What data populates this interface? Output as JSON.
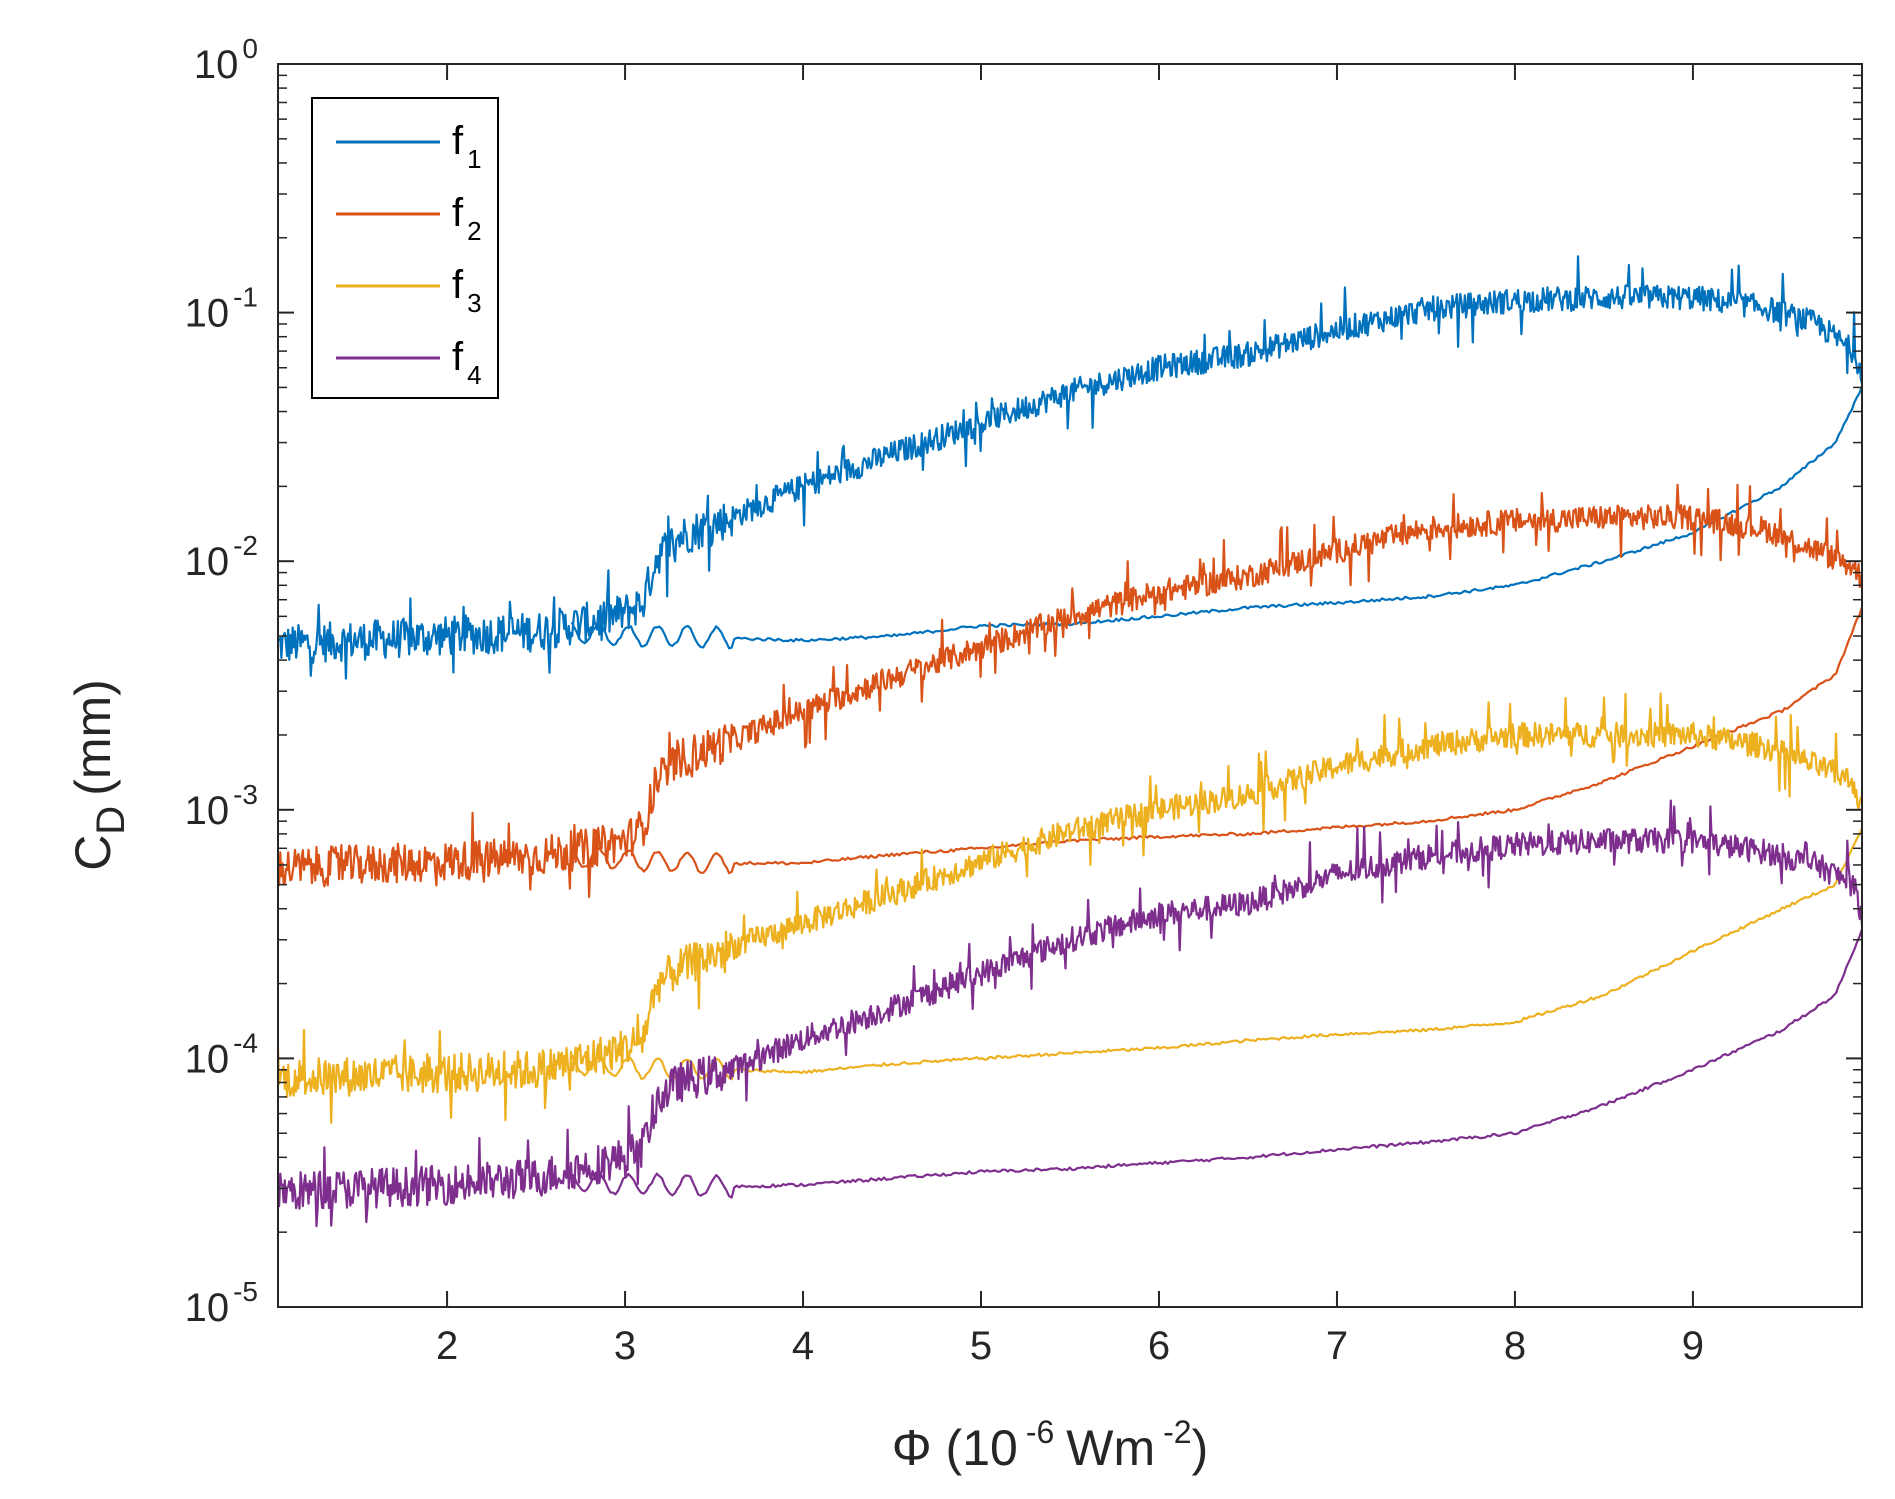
{
  "chart_data": {
    "type": "line",
    "title": "",
    "xlabel": {
      "prefix": "Φ (10",
      "exp": "-6",
      "mid": "Wm",
      "exp2": "-2",
      "suffix": ")"
    },
    "ylabel": {
      "main": "C",
      "sub": "D",
      "suffix": "(mm)"
    },
    "yscale": "log",
    "xlim": [
      1.05,
      9.95
    ],
    "ylim": [
      1e-05,
      1
    ],
    "grid": false,
    "legend_position": "top-left",
    "x_ticks": [
      {
        "value": 2,
        "label": "2"
      },
      {
        "value": 3,
        "label": "3"
      },
      {
        "value": 4,
        "label": "4"
      },
      {
        "value": 5,
        "label": "5"
      },
      {
        "value": 6,
        "label": "6"
      },
      {
        "value": 7,
        "label": "7"
      },
      {
        "value": 8,
        "label": "8"
      },
      {
        "value": 9,
        "label": "9"
      }
    ],
    "y_ticks": [
      {
        "value": 1e-05,
        "base": "10",
        "exp": "-5"
      },
      {
        "value": 0.0001,
        "base": "10",
        "exp": "-4"
      },
      {
        "value": 0.001,
        "base": "10",
        "exp": "-3"
      },
      {
        "value": 0.01,
        "base": "10",
        "exp": "-2"
      },
      {
        "value": 0.1,
        "base": "10",
        "exp": "-1"
      },
      {
        "value": 1,
        "base": "10",
        "exp": "0"
      }
    ],
    "series": [
      {
        "name": "f1",
        "label_main": "f",
        "label_sub": "1",
        "color": "#0072BD",
        "upper": {
          "x": [
            1.05,
            1.5,
            2.0,
            2.5,
            2.8,
            3.0,
            3.1,
            3.18,
            3.3,
            3.6,
            4.0,
            4.5,
            5.0,
            5.5,
            6.0,
            6.5,
            7.0,
            7.5,
            8.0,
            8.5,
            9.0,
            9.4,
            9.7,
            9.9,
            9.95
          ],
          "y": [
            0.0046,
            0.0048,
            0.005,
            0.0052,
            0.0057,
            0.0062,
            0.0068,
            0.0105,
            0.0125,
            0.015,
            0.02,
            0.027,
            0.036,
            0.048,
            0.06,
            0.068,
            0.085,
            0.103,
            0.112,
            0.115,
            0.115,
            0.105,
            0.09,
            0.07,
            0.058
          ]
        },
        "lower": {
          "x": [
            2.7,
            3.0,
            3.2,
            3.6,
            4.0,
            4.5,
            5.0,
            5.5,
            6.0,
            6.5,
            7.0,
            7.5,
            8.0,
            8.5,
            9.0,
            9.5,
            9.8,
            9.95
          ],
          "y": [
            0.0052,
            0.005,
            0.005,
            0.0049,
            0.0048,
            0.005,
            0.0055,
            0.0056,
            0.006,
            0.0065,
            0.0068,
            0.0072,
            0.008,
            0.01,
            0.013,
            0.02,
            0.03,
            0.05
          ]
        }
      },
      {
        "name": "f2",
        "label_main": "f",
        "label_sub": "2",
        "color": "#D95319",
        "upper": {
          "x": [
            1.05,
            1.5,
            2.0,
            2.5,
            2.8,
            3.0,
            3.1,
            3.18,
            3.3,
            3.6,
            4.0,
            4.5,
            5.0,
            5.5,
            6.0,
            6.5,
            7.0,
            7.5,
            8.0,
            8.5,
            9.0,
            9.4,
            9.7,
            9.9,
            9.95
          ],
          "y": [
            0.00058,
            0.0006,
            0.00062,
            0.00065,
            0.0007,
            0.00075,
            0.00085,
            0.0013,
            0.0016,
            0.0019,
            0.0025,
            0.0034,
            0.0045,
            0.006,
            0.0075,
            0.0087,
            0.011,
            0.0135,
            0.0145,
            0.015,
            0.015,
            0.0135,
            0.011,
            0.0095,
            0.0085
          ]
        },
        "lower": {
          "x": [
            2.7,
            3.0,
            3.2,
            3.6,
            4.0,
            4.5,
            5.0,
            5.5,
            6.0,
            6.5,
            7.0,
            7.5,
            8.0,
            8.5,
            9.0,
            9.5,
            9.8,
            9.95
          ],
          "y": [
            0.00065,
            0.00063,
            0.00062,
            0.00061,
            0.00061,
            0.00066,
            0.0007,
            0.00075,
            0.00078,
            0.0008,
            0.00085,
            0.0009,
            0.001,
            0.0013,
            0.0018,
            0.0025,
            0.0035,
            0.0065
          ]
        }
      },
      {
        "name": "f3",
        "label_main": "f",
        "label_sub": "3",
        "color": "#EDB120",
        "upper": {
          "x": [
            1.05,
            1.5,
            2.0,
            2.5,
            2.8,
            3.0,
            3.1,
            3.18,
            3.3,
            3.6,
            4.0,
            4.5,
            5.0,
            5.5,
            6.0,
            6.5,
            7.0,
            7.5,
            8.0,
            8.5,
            9.0,
            9.4,
            9.7,
            9.9,
            9.95
          ],
          "y": [
            8.3e-05,
            8.5e-05,
            8.7e-05,
            9e-05,
            0.0001,
            0.00011,
            0.00012,
            0.0002,
            0.00023,
            0.00028,
            0.00035,
            0.00046,
            0.00062,
            0.00082,
            0.001,
            0.00115,
            0.0015,
            0.0018,
            0.002,
            0.002,
            0.002,
            0.0018,
            0.0015,
            0.0013,
            0.001
          ]
        },
        "lower": {
          "x": [
            2.7,
            3.0,
            3.2,
            3.6,
            4.0,
            4.5,
            5.0,
            5.5,
            6.0,
            6.5,
            7.0,
            7.5,
            8.0,
            8.5,
            9.0,
            9.5,
            9.8,
            9.95
          ],
          "y": [
            9.5e-05,
            9.2e-05,
            9.1e-05,
            9e-05,
            8.8e-05,
            9.5e-05,
            0.0001,
            0.000105,
            0.00011,
            0.000118,
            0.000125,
            0.00013,
            0.00014,
            0.00018,
            0.00027,
            0.0004,
            0.0005,
            0.00085
          ]
        }
      },
      {
        "name": "f4",
        "label_main": "f",
        "label_sub": "4",
        "color": "#7E2F8E",
        "upper": {
          "x": [
            1.05,
            1.5,
            2.0,
            2.5,
            2.8,
            3.0,
            3.1,
            3.18,
            3.3,
            3.6,
            4.0,
            4.5,
            5.0,
            5.5,
            6.0,
            6.5,
            7.0,
            7.5,
            8.0,
            8.5,
            9.0,
            9.4,
            9.7,
            9.9,
            9.95
          ],
          "y": [
            2.9e-05,
            3e-05,
            3.1e-05,
            3.3e-05,
            3.7e-05,
            4e-05,
            4.4e-05,
            6.8e-05,
            8e-05,
            9e-05,
            0.00012,
            0.00016,
            0.00022,
            0.0003,
            0.00038,
            0.00042,
            0.00055,
            0.00065,
            0.00072,
            0.00075,
            0.00075,
            0.00068,
            0.0006,
            0.0005,
            0.00038
          ]
        },
        "lower": {
          "x": [
            2.7,
            3.0,
            3.2,
            3.6,
            4.0,
            4.5,
            5.0,
            5.5,
            6.0,
            6.5,
            7.0,
            7.5,
            8.0,
            8.5,
            9.0,
            9.5,
            9.8,
            9.95
          ],
          "y": [
            3.2e-05,
            3.1e-05,
            3.1e-05,
            3.05e-05,
            3.1e-05,
            3.3e-05,
            3.5e-05,
            3.6e-05,
            3.8e-05,
            4e-05,
            4.3e-05,
            4.6e-05,
            5e-05,
            6.5e-05,
            9e-05,
            0.00013,
            0.00018,
            0.00033
          ]
        }
      }
    ]
  }
}
